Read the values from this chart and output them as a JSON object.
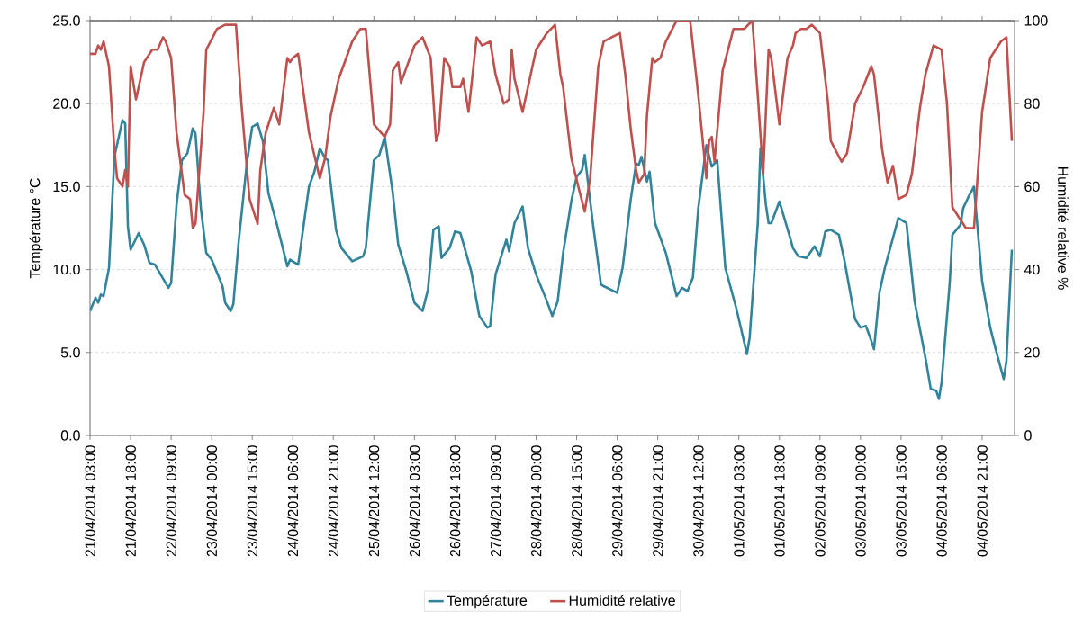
{
  "chart_data": {
    "type": "line",
    "ylabel": "Température °C",
    "y2label": "Humidité relative %",
    "xlim": [
      "2014-04-21T03:00",
      "2014-05-05T09:00"
    ],
    "xticks": [
      {
        "value": "2014-04-21T03:00",
        "label": "21/04/2014 03:00"
      },
      {
        "value": "2014-04-21T18:00",
        "label": "21/04/2014 18:00"
      },
      {
        "value": "2014-04-22T09:00",
        "label": "22/04/2014 09:00"
      },
      {
        "value": "2014-04-23T00:00",
        "label": "23/04/2014 00:00"
      },
      {
        "value": "2014-04-23T15:00",
        "label": "23/04/2014 15:00"
      },
      {
        "value": "2014-04-24T06:00",
        "label": "24/04/2014 06:00"
      },
      {
        "value": "2014-04-24T21:00",
        "label": "24/04/2014 21:00"
      },
      {
        "value": "2014-04-25T12:00",
        "label": "25/04/2014 12:00"
      },
      {
        "value": "2014-04-26T03:00",
        "label": "26/04/2014 03:00"
      },
      {
        "value": "2014-04-26T18:00",
        "label": "26/04/2014 18:00"
      },
      {
        "value": "2014-04-27T09:00",
        "label": "27/04/2014 09:00"
      },
      {
        "value": "2014-04-28T00:00",
        "label": "28/04/2014 00:00"
      },
      {
        "value": "2014-04-28T15:00",
        "label": "28/04/2014 15:00"
      },
      {
        "value": "2014-04-29T06:00",
        "label": "29/04/2014 06:00"
      },
      {
        "value": "2014-04-29T21:00",
        "label": "29/04/2014 21:00"
      },
      {
        "value": "2014-04-30T12:00",
        "label": "30/04/2014 12:00"
      },
      {
        "value": "2014-05-01T03:00",
        "label": "01/05/2014 03:00"
      },
      {
        "value": "2014-05-01T18:00",
        "label": "01/05/2014 18:00"
      },
      {
        "value": "2014-05-02T09:00",
        "label": "02/05/2014 09:00"
      },
      {
        "value": "2014-05-03T00:00",
        "label": "03/05/2014 00:00"
      },
      {
        "value": "2014-05-03T15:00",
        "label": "03/05/2014 15:00"
      },
      {
        "value": "2014-05-04T06:00",
        "label": "04/05/2014 06:00"
      },
      {
        "value": "2014-05-04T21:00",
        "label": "04/05/2014 21:00"
      }
    ],
    "ylim": [
      0,
      25
    ],
    "yticks": [
      {
        "value": 0,
        "label": "0.0"
      },
      {
        "value": 5,
        "label": "5.0"
      },
      {
        "value": 10,
        "label": "10.0"
      },
      {
        "value": 15,
        "label": "15.0"
      },
      {
        "value": 20,
        "label": "20.0"
      },
      {
        "value": 25,
        "label": "25.0"
      }
    ],
    "y2lim": [
      0,
      100
    ],
    "y2ticks": [
      0,
      20,
      40,
      60,
      80,
      100
    ],
    "grid": "y",
    "legend": "bottom",
    "line_style": "solid",
    "series": [
      {
        "name": "Température",
        "color": "#31849b",
        "x": [
          "2014-04-21T03:00",
          "2014-04-21T05:00",
          "2014-04-21T06:00",
          "2014-04-21T07:00",
          "2014-04-21T08:00",
          "2014-04-21T10:00",
          "2014-04-21T12:00",
          "2014-04-21T15:00",
          "2014-04-21T16:00",
          "2014-04-21T17:00",
          "2014-04-21T18:00",
          "2014-04-21T21:00",
          "2014-04-21T23:00",
          "2014-04-22T01:00",
          "2014-04-22T03:00",
          "2014-04-22T08:00",
          "2014-04-22T09:00",
          "2014-04-22T11:00",
          "2014-04-22T13:00",
          "2014-04-22T15:00",
          "2014-04-22T17:00",
          "2014-04-22T18:00",
          "2014-04-22T20:00",
          "2014-04-22T22:00",
          "2014-04-23T00:00",
          "2014-04-23T04:00",
          "2014-04-23T05:00",
          "2014-04-23T07:00",
          "2014-04-23T08:00",
          "2014-04-23T10:00",
          "2014-04-23T13:00",
          "2014-04-23T15:00",
          "2014-04-23T17:00",
          "2014-04-23T19:00",
          "2014-04-23T21:00",
          "2014-04-24T00:00",
          "2014-04-24T04:00",
          "2014-04-24T05:00",
          "2014-04-24T08:00",
          "2014-04-24T12:00",
          "2014-04-24T14:00",
          "2014-04-24T16:00",
          "2014-04-24T18:00",
          "2014-04-24T19:00",
          "2014-04-24T22:00",
          "2014-04-25T00:00",
          "2014-04-25T04:00",
          "2014-04-25T08:00",
          "2014-04-25T09:00",
          "2014-04-25T12:00",
          "2014-04-25T14:00",
          "2014-04-25T16:00",
          "2014-04-25T19:00",
          "2014-04-25T21:00",
          "2014-04-26T00:00",
          "2014-04-26T03:00",
          "2014-04-26T06:00",
          "2014-04-26T08:00",
          "2014-04-26T10:00",
          "2014-04-26T12:00",
          "2014-04-26T13:00",
          "2014-04-26T16:00",
          "2014-04-26T18:00",
          "2014-04-26T20:00",
          "2014-04-27T00:00",
          "2014-04-27T03:00",
          "2014-04-27T06:00",
          "2014-04-27T07:00",
          "2014-04-27T09:00",
          "2014-04-27T13:00",
          "2014-04-27T14:00",
          "2014-04-27T16:00",
          "2014-04-27T19:00",
          "2014-04-27T21:00",
          "2014-04-28T00:00",
          "2014-04-28T04:00",
          "2014-04-28T06:00",
          "2014-04-28T08:00",
          "2014-04-28T10:00",
          "2014-04-28T13:00",
          "2014-04-28T15:00",
          "2014-04-28T17:00",
          "2014-04-28T18:00",
          "2014-04-28T21:00",
          "2014-04-29T00:00",
          "2014-04-29T01:00",
          "2014-04-29T06:00",
          "2014-04-29T08:00",
          "2014-04-29T11:00",
          "2014-04-29T13:00",
          "2014-04-29T14:00",
          "2014-04-29T15:00",
          "2014-04-29T17:00",
          "2014-04-29T18:00",
          "2014-04-29T20:00",
          "2014-04-30T00:00",
          "2014-04-30T04:00",
          "2014-04-30T06:00",
          "2014-04-30T08:00",
          "2014-04-30T10:00",
          "2014-04-30T12:00",
          "2014-04-30T15:00",
          "2014-04-30T17:00",
          "2014-04-30T19:00",
          "2014-04-30T22:00",
          "2014-05-01T02:00",
          "2014-05-01T04:00",
          "2014-05-01T06:00",
          "2014-05-01T07:00",
          "2014-05-01T10:00",
          "2014-05-01T11:00",
          "2014-05-01T13:00",
          "2014-05-01T14:00",
          "2014-05-01T15:00",
          "2014-05-01T18:00",
          "2014-05-01T22:00",
          "2014-05-01T23:00",
          "2014-05-02T01:00",
          "2014-05-02T04:00",
          "2014-05-02T07:00",
          "2014-05-02T09:00",
          "2014-05-02T11:00",
          "2014-05-02T13:00",
          "2014-05-02T16:00",
          "2014-05-02T18:00",
          "2014-05-02T22:00",
          "2014-05-03T00:00",
          "2014-05-03T02:00",
          "2014-05-03T04:00",
          "2014-05-03T05:00",
          "2014-05-03T07:00",
          "2014-05-03T09:00",
          "2014-05-03T11:00",
          "2014-05-03T14:00",
          "2014-05-03T17:00",
          "2014-05-03T20:00",
          "2014-05-04T00:00",
          "2014-05-04T02:00",
          "2014-05-04T04:00",
          "2014-05-04T05:00",
          "2014-05-04T06:00",
          "2014-05-04T09:00",
          "2014-05-04T10:00",
          "2014-05-04T13:00",
          "2014-05-04T14:00",
          "2014-05-04T16:00",
          "2014-05-04T18:00",
          "2014-05-04T21:00",
          "2014-05-05T00:00",
          "2014-05-05T02:00",
          "2014-05-05T05:00",
          "2014-05-05T06:00",
          "2014-05-05T08:00"
        ],
        "values": [
          7.5,
          8.3,
          8.0,
          8.5,
          8.4,
          10.1,
          16.8,
          19.0,
          18.8,
          12.6,
          11.2,
          12.2,
          11.5,
          10.4,
          10.3,
          8.9,
          9.2,
          13.9,
          16.6,
          17.0,
          18.5,
          18.2,
          13.7,
          11.0,
          10.6,
          9.0,
          8.0,
          7.5,
          7.9,
          11.7,
          16.4,
          18.6,
          18.8,
          17.7,
          14.6,
          12.8,
          10.2,
          10.6,
          10.3,
          15.0,
          15.9,
          17.3,
          16.7,
          16.6,
          12.4,
          11.3,
          10.5,
          10.8,
          11.3,
          16.6,
          16.9,
          18.0,
          14.6,
          11.5,
          9.9,
          8.0,
          7.5,
          8.8,
          12.4,
          12.6,
          10.7,
          11.3,
          12.3,
          12.2,
          9.9,
          7.2,
          6.5,
          6.6,
          9.7,
          11.8,
          11.1,
          12.8,
          13.8,
          11.3,
          9.7,
          8.1,
          7.2,
          8.1,
          11.0,
          14.1,
          15.6,
          16.0,
          16.9,
          12.8,
          9.1,
          9.0,
          8.6,
          10.1,
          14.2,
          16.4,
          16.3,
          16.8,
          15.3,
          15.9,
          12.8,
          11.0,
          8.4,
          8.9,
          8.7,
          9.5,
          13.7,
          17.5,
          16.2,
          16.6,
          10.1,
          7.7,
          6.3,
          4.9,
          5.9,
          12.8,
          17.3,
          13.9,
          12.8,
          12.8,
          14.1,
          11.9,
          11.3,
          10.8,
          10.7,
          11.4,
          10.8,
          12.3,
          12.4,
          12.1,
          10.6,
          7.0,
          6.5,
          6.6,
          5.7,
          5.2,
          8.6,
          10.1,
          11.3,
          13.1,
          12.8,
          8.1,
          4.7,
          2.8,
          2.7,
          2.2,
          3.2,
          9.2,
          12.1,
          12.7,
          13.7,
          14.4,
          15.0,
          9.3,
          6.5,
          5.2,
          3.4,
          4.5,
          11.2
        ]
      },
      {
        "name": "Humidité relative",
        "color": "#c0504d",
        "axis": "y2",
        "x": [
          "2014-04-21T03:00",
          "2014-04-21T05:00",
          "2014-04-21T06:00",
          "2014-04-21T07:00",
          "2014-04-21T08:00",
          "2014-04-21T10:00",
          "2014-04-21T12:00",
          "2014-04-21T13:00",
          "2014-04-21T15:00",
          "2014-04-21T16:00",
          "2014-04-21T17:00",
          "2014-04-21T18:00",
          "2014-04-21T20:00",
          "2014-04-21T23:00",
          "2014-04-22T02:00",
          "2014-04-22T04:00",
          "2014-04-22T06:00",
          "2014-04-22T07:00",
          "2014-04-22T09:00",
          "2014-04-22T11:00",
          "2014-04-22T14:00",
          "2014-04-22T16:00",
          "2014-04-22T17:00",
          "2014-04-22T18:00",
          "2014-04-22T21:00",
          "2014-04-22T22:00",
          "2014-04-23T02:00",
          "2014-04-23T05:00",
          "2014-04-23T09:00",
          "2014-04-23T11:00",
          "2014-04-23T14:00",
          "2014-04-23T17:00",
          "2014-04-23T18:00",
          "2014-04-23T20:00",
          "2014-04-23T23:00",
          "2014-04-24T01:00",
          "2014-04-24T04:00",
          "2014-04-24T05:00",
          "2014-04-24T06:00",
          "2014-04-24T08:00",
          "2014-04-24T12:00",
          "2014-04-24T16:00",
          "2014-04-24T18:00",
          "2014-04-24T20:00",
          "2014-04-24T23:00",
          "2014-04-25T04:00",
          "2014-04-25T07:00",
          "2014-04-25T09:00",
          "2014-04-25T12:00",
          "2014-04-25T16:00",
          "2014-04-25T18:00",
          "2014-04-25T19:00",
          "2014-04-25T21:00",
          "2014-04-25T22:00",
          "2014-04-26T03:00",
          "2014-04-26T06:00",
          "2014-04-26T09:00",
          "2014-04-26T11:00",
          "2014-04-26T12:00",
          "2014-04-26T14:00",
          "2014-04-26T16:00",
          "2014-04-26T17:00",
          "2014-04-26T20:00",
          "2014-04-26T21:00",
          "2014-04-26T23:00",
          "2014-04-27T02:00",
          "2014-04-27T04:00",
          "2014-04-27T07:00",
          "2014-04-27T09:00",
          "2014-04-27T12:00",
          "2014-04-27T14:00",
          "2014-04-27T15:00",
          "2014-04-27T16:00",
          "2014-04-27T19:00",
          "2014-04-27T21:00",
          "2014-04-28T00:00",
          "2014-04-28T04:00",
          "2014-04-28T07:00",
          "2014-04-28T09:00",
          "2014-04-28T10:00",
          "2014-04-28T13:00",
          "2014-04-28T16:00",
          "2014-04-28T18:00",
          "2014-04-28T20:00",
          "2014-04-28T23:00",
          "2014-04-29T01:00",
          "2014-04-29T04:00",
          "2014-04-29T07:00",
          "2014-04-29T09:00",
          "2014-04-29T11:00",
          "2014-04-29T13:00",
          "2014-04-29T14:00",
          "2014-04-29T16:00",
          "2014-04-29T17:00",
          "2014-04-29T19:00",
          "2014-04-29T20:00",
          "2014-04-29T22:00",
          "2014-04-30T00:00",
          "2014-04-30T04:00",
          "2014-04-30T09:00",
          "2014-04-30T12:00",
          "2014-04-30T15:00",
          "2014-04-30T16:00",
          "2014-04-30T17:00",
          "2014-04-30T18:00",
          "2014-04-30T21:00",
          "2014-05-01T01:00",
          "2014-05-01T05:00",
          "2014-05-01T08:00",
          "2014-05-01T10:00",
          "2014-05-01T12:00",
          "2014-05-01T14:00",
          "2014-05-01T15:00",
          "2014-05-01T18:00",
          "2014-05-01T21:00",
          "2014-05-01T23:00",
          "2014-05-02T00:00",
          "2014-05-02T02:00",
          "2014-05-02T04:00",
          "2014-05-02T06:00",
          "2014-05-02T09:00",
          "2014-05-02T12:00",
          "2014-05-02T13:00",
          "2014-05-02T17:00",
          "2014-05-02T19:00",
          "2014-05-02T22:00",
          "2014-05-03T01:00",
          "2014-05-03T04:00",
          "2014-05-03T05:00",
          "2014-05-03T08:00",
          "2014-05-03T10:00",
          "2014-05-03T12:00",
          "2014-05-03T14:00",
          "2014-05-03T17:00",
          "2014-05-03T19:00",
          "2014-05-03T22:00",
          "2014-05-04T00:00",
          "2014-05-04T03:00",
          "2014-05-04T06:00",
          "2014-05-04T08:00",
          "2014-05-04T10:00",
          "2014-05-04T13:00",
          "2014-05-04T15:00",
          "2014-05-04T18:00",
          "2014-05-04T21:00",
          "2014-05-05T00:00",
          "2014-05-05T04:00",
          "2014-05-05T06:00",
          "2014-05-05T08:00"
        ],
        "values": [
          92,
          92,
          94,
          93,
          95,
          89,
          69,
          62,
          60,
          64,
          60,
          89,
          81,
          90,
          93,
          93,
          96,
          95,
          91,
          73,
          58,
          57,
          50,
          51,
          78,
          93,
          98,
          99,
          99,
          80,
          57,
          51,
          64,
          73,
          79,
          75,
          91,
          90,
          91,
          92,
          73,
          62,
          67,
          77,
          86,
          95,
          98,
          98,
          75,
          72,
          75,
          88,
          90,
          85,
          94,
          96,
          91,
          71,
          73,
          91,
          89,
          84,
          84,
          86,
          78,
          96,
          94,
          95,
          87,
          80,
          81,
          93,
          86,
          78,
          84,
          93,
          97,
          99,
          87,
          84,
          67,
          59,
          54,
          62,
          89,
          95,
          96,
          97,
          87,
          74,
          64,
          61,
          63,
          77,
          91,
          90,
          91,
          95,
          100,
          100,
          82,
          62,
          71,
          72,
          66,
          88,
          98,
          98,
          100,
          82,
          63,
          93,
          91,
          75,
          91,
          94,
          97,
          98,
          98,
          99,
          97,
          80,
          71,
          66,
          68,
          80,
          84,
          89,
          87,
          69,
          61,
          65,
          57,
          58,
          63,
          79,
          87,
          94,
          93,
          80,
          55,
          52,
          50,
          50,
          78,
          91,
          95,
          96,
          71
        ]
      }
    ]
  }
}
